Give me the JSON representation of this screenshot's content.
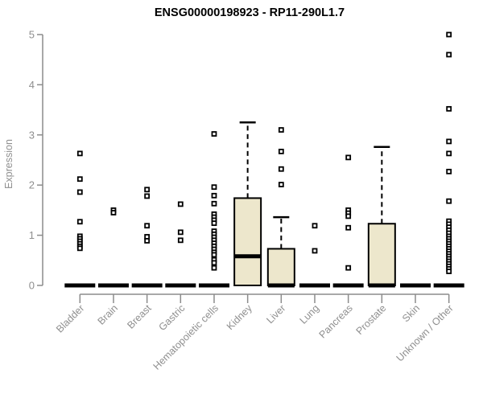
{
  "chart_data": {
    "type": "boxplot",
    "title": "ENSG00000198923 - RP11-290L1.7",
    "xlabel": "",
    "ylabel": "Expression",
    "ylim": [
      0,
      5
    ],
    "yticks": [
      0,
      1,
      2,
      3,
      4,
      5
    ],
    "grid": false,
    "legend": false,
    "axis_color": "#8c8c8c",
    "tick_label_color": "#8f8f8f",
    "box_fill_color": "#ede7cc",
    "box_stroke_color": "#000000",
    "outlier_marker": "small-open-square",
    "categories": [
      "Bladder",
      "Brain",
      "Breast",
      "Gastric",
      "Hematopoietic cells",
      "Kidney",
      "Liver",
      "Lung",
      "Pancreas",
      "Prostate",
      "Skin",
      "Unknown / Other"
    ],
    "series": [
      {
        "name": "Bladder",
        "q1": 0,
        "median": 0,
        "q3": 0,
        "whisker_low": 0,
        "whisker_high": 0,
        "outliers": [
          2.63,
          2.12,
          1.86,
          1.27,
          0.98,
          0.93,
          0.88,
          0.83,
          0.78,
          0.74
        ]
      },
      {
        "name": "Brain",
        "q1": 0,
        "median": 0,
        "q3": 0,
        "whisker_low": 0,
        "whisker_high": 0,
        "outliers": [
          1.5,
          1.45
        ]
      },
      {
        "name": "Breast",
        "q1": 0,
        "median": 0,
        "q3": 0,
        "whisker_low": 0,
        "whisker_high": 0,
        "outliers": [
          1.91,
          1.78,
          1.19,
          0.97,
          0.89
        ]
      },
      {
        "name": "Gastric",
        "q1": 0,
        "median": 0,
        "q3": 0,
        "whisker_low": 0,
        "whisker_high": 0,
        "outliers": [
          1.62,
          1.06,
          0.9
        ]
      },
      {
        "name": "Hematopoietic cells",
        "q1": 0,
        "median": 0,
        "q3": 0,
        "whisker_low": 0,
        "whisker_high": 0,
        "outliers": [
          3.02,
          1.96,
          1.79,
          1.63,
          1.42,
          1.36,
          1.3,
          1.24,
          1.08,
          1.02,
          0.96,
          0.9,
          0.84,
          0.78,
          0.72,
          0.66,
          0.61,
          0.51,
          0.45,
          0.35
        ]
      },
      {
        "name": "Kidney",
        "q1": 0,
        "median": 0.58,
        "q3": 1.74,
        "whisker_low": 0,
        "whisker_high": 3.25,
        "outliers": []
      },
      {
        "name": "Liver",
        "q1": 0,
        "median": 0,
        "q3": 0.73,
        "whisker_low": 0,
        "whisker_high": 1.36,
        "outliers": [
          3.1,
          2.67,
          2.32,
          2.01
        ]
      },
      {
        "name": "Lung",
        "q1": 0,
        "median": 0,
        "q3": 0,
        "whisker_low": 0,
        "whisker_high": 0,
        "outliers": [
          1.19,
          0.69
        ]
      },
      {
        "name": "Pancreas",
        "q1": 0,
        "median": 0,
        "q3": 0,
        "whisker_low": 0,
        "whisker_high": 0,
        "outliers": [
          2.55,
          1.5,
          1.44,
          1.38,
          1.15,
          0.35
        ]
      },
      {
        "name": "Prostate",
        "q1": 0,
        "median": 0,
        "q3": 1.23,
        "whisker_low": 0,
        "whisker_high": 2.76,
        "outliers": []
      },
      {
        "name": "Skin",
        "q1": 0,
        "median": 0,
        "q3": 0,
        "whisker_low": 0,
        "whisker_high": 0,
        "outliers": []
      },
      {
        "name": "Unknown / Other",
        "q1": 0,
        "median": 0,
        "q3": 0,
        "whisker_low": 0,
        "whisker_high": 0,
        "outliers": [
          5,
          4.6,
          3.52,
          2.87,
          2.63,
          2.27,
          1.68,
          1.28,
          1.22,
          1.16,
          1.1,
          1.04,
          0.98,
          0.93,
          0.88,
          0.83,
          0.78,
          0.73,
          0.68,
          0.63,
          0.58,
          0.53,
          0.48,
          0.43,
          0.38,
          0.33,
          0.28
        ]
      }
    ]
  }
}
